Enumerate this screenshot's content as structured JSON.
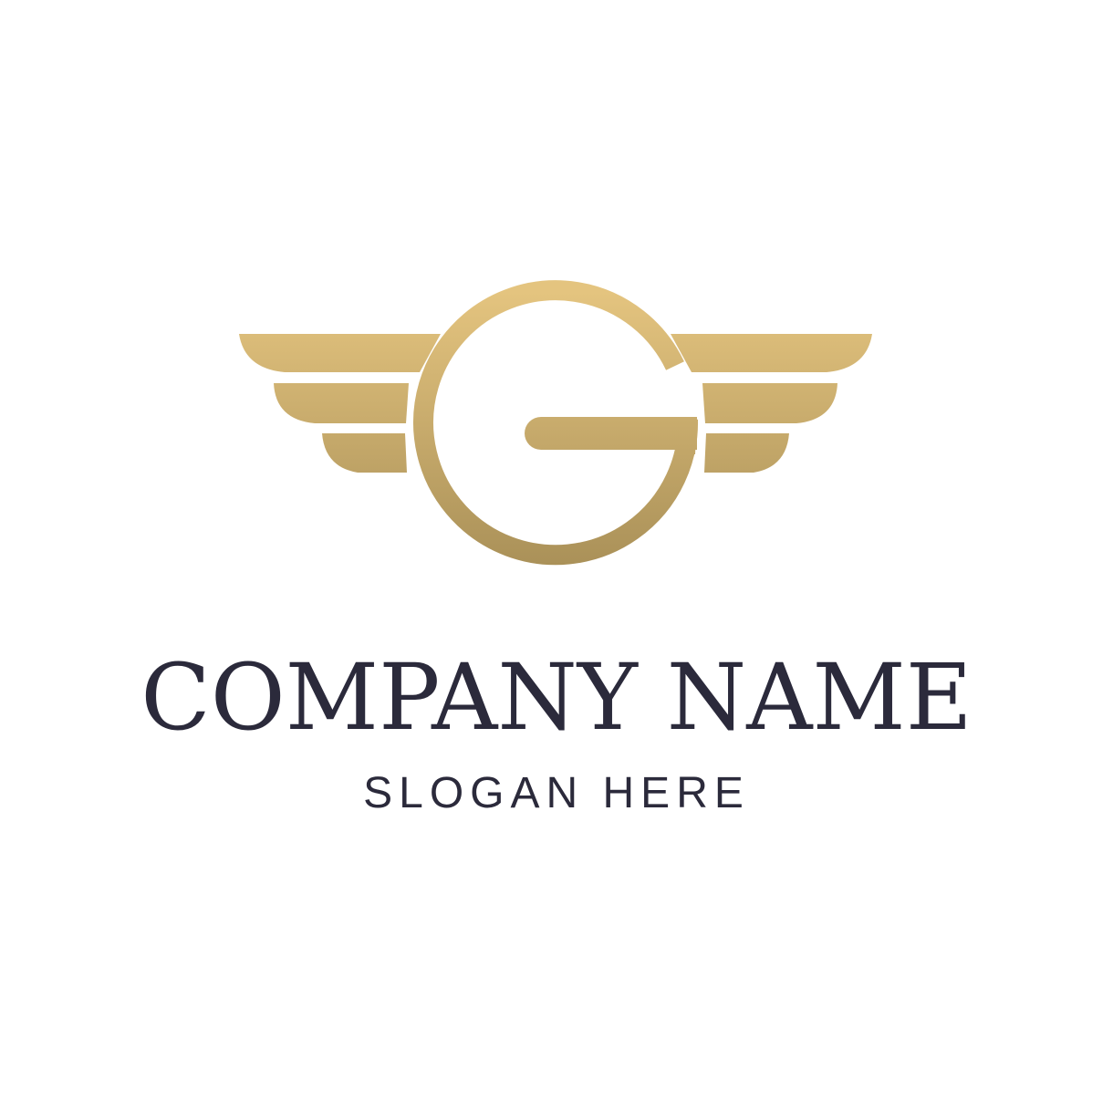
{
  "logo": {
    "letter": "G",
    "company_name": "COMPANY NAME",
    "slogan": "SLOGAN HERE"
  },
  "colors": {
    "background": "#ffffff",
    "gold_light": "#e4c47f",
    "gold_dark": "#a88f57",
    "text": "#2b2a3b"
  },
  "icons": {
    "emblem": "winged-letter-g-icon"
  }
}
